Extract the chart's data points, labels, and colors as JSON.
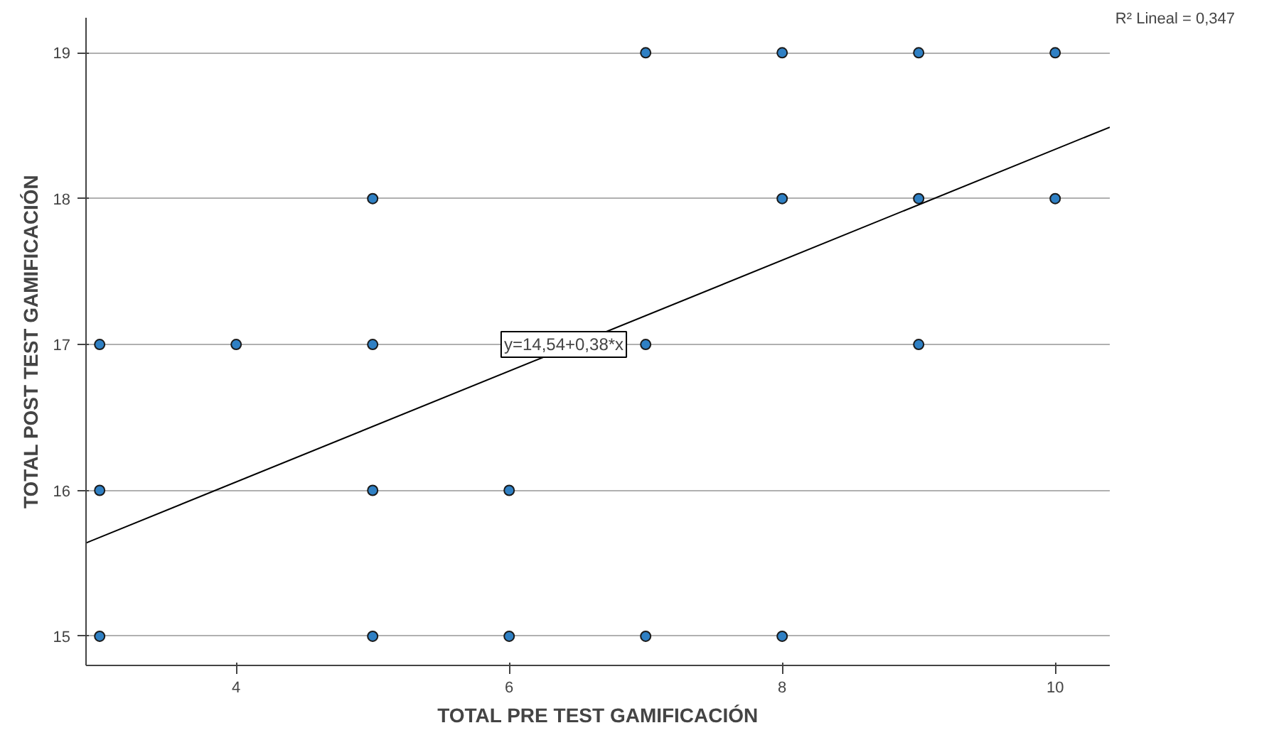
{
  "chart_data": {
    "type": "scatter",
    "xlabel": "TOTAL PRE TEST GAMIFICACIÓN",
    "ylabel": "TOTAL POST TEST GAMIFICACIÓN",
    "series": [
      {
        "color": "#2f80c4",
        "x": [
          3,
          3,
          3,
          4,
          5,
          5,
          5,
          5,
          6,
          6,
          7,
          7,
          7,
          8,
          8,
          8,
          9,
          9,
          9,
          10,
          10
        ],
        "values": [
          17,
          16,
          15,
          17,
          18,
          17,
          16,
          15,
          16,
          15,
          19,
          17,
          15,
          19,
          18,
          15,
          19,
          18,
          17,
          19,
          18
        ]
      },
      {
        "type": "line",
        "color": "#000000",
        "x": [
          2.9,
          10.4
        ],
        "values": [
          15.64,
          18.49
        ],
        "marker": "none"
      }
    ],
    "xlim": [
      2.9,
      10.4
    ],
    "ylim": [
      14.8,
      19.24
    ],
    "xticks": [
      4,
      6,
      8,
      10
    ],
    "yticks": [
      15,
      16,
      17,
      18,
      19
    ],
    "grid": "y",
    "marker": "circle",
    "line_style": "solid",
    "annotations": [
      {
        "text": "y=14,54+0,38*x",
        "x": 6.4,
        "y": 17
      },
      "R² Lineal = 0,347"
    ]
  }
}
